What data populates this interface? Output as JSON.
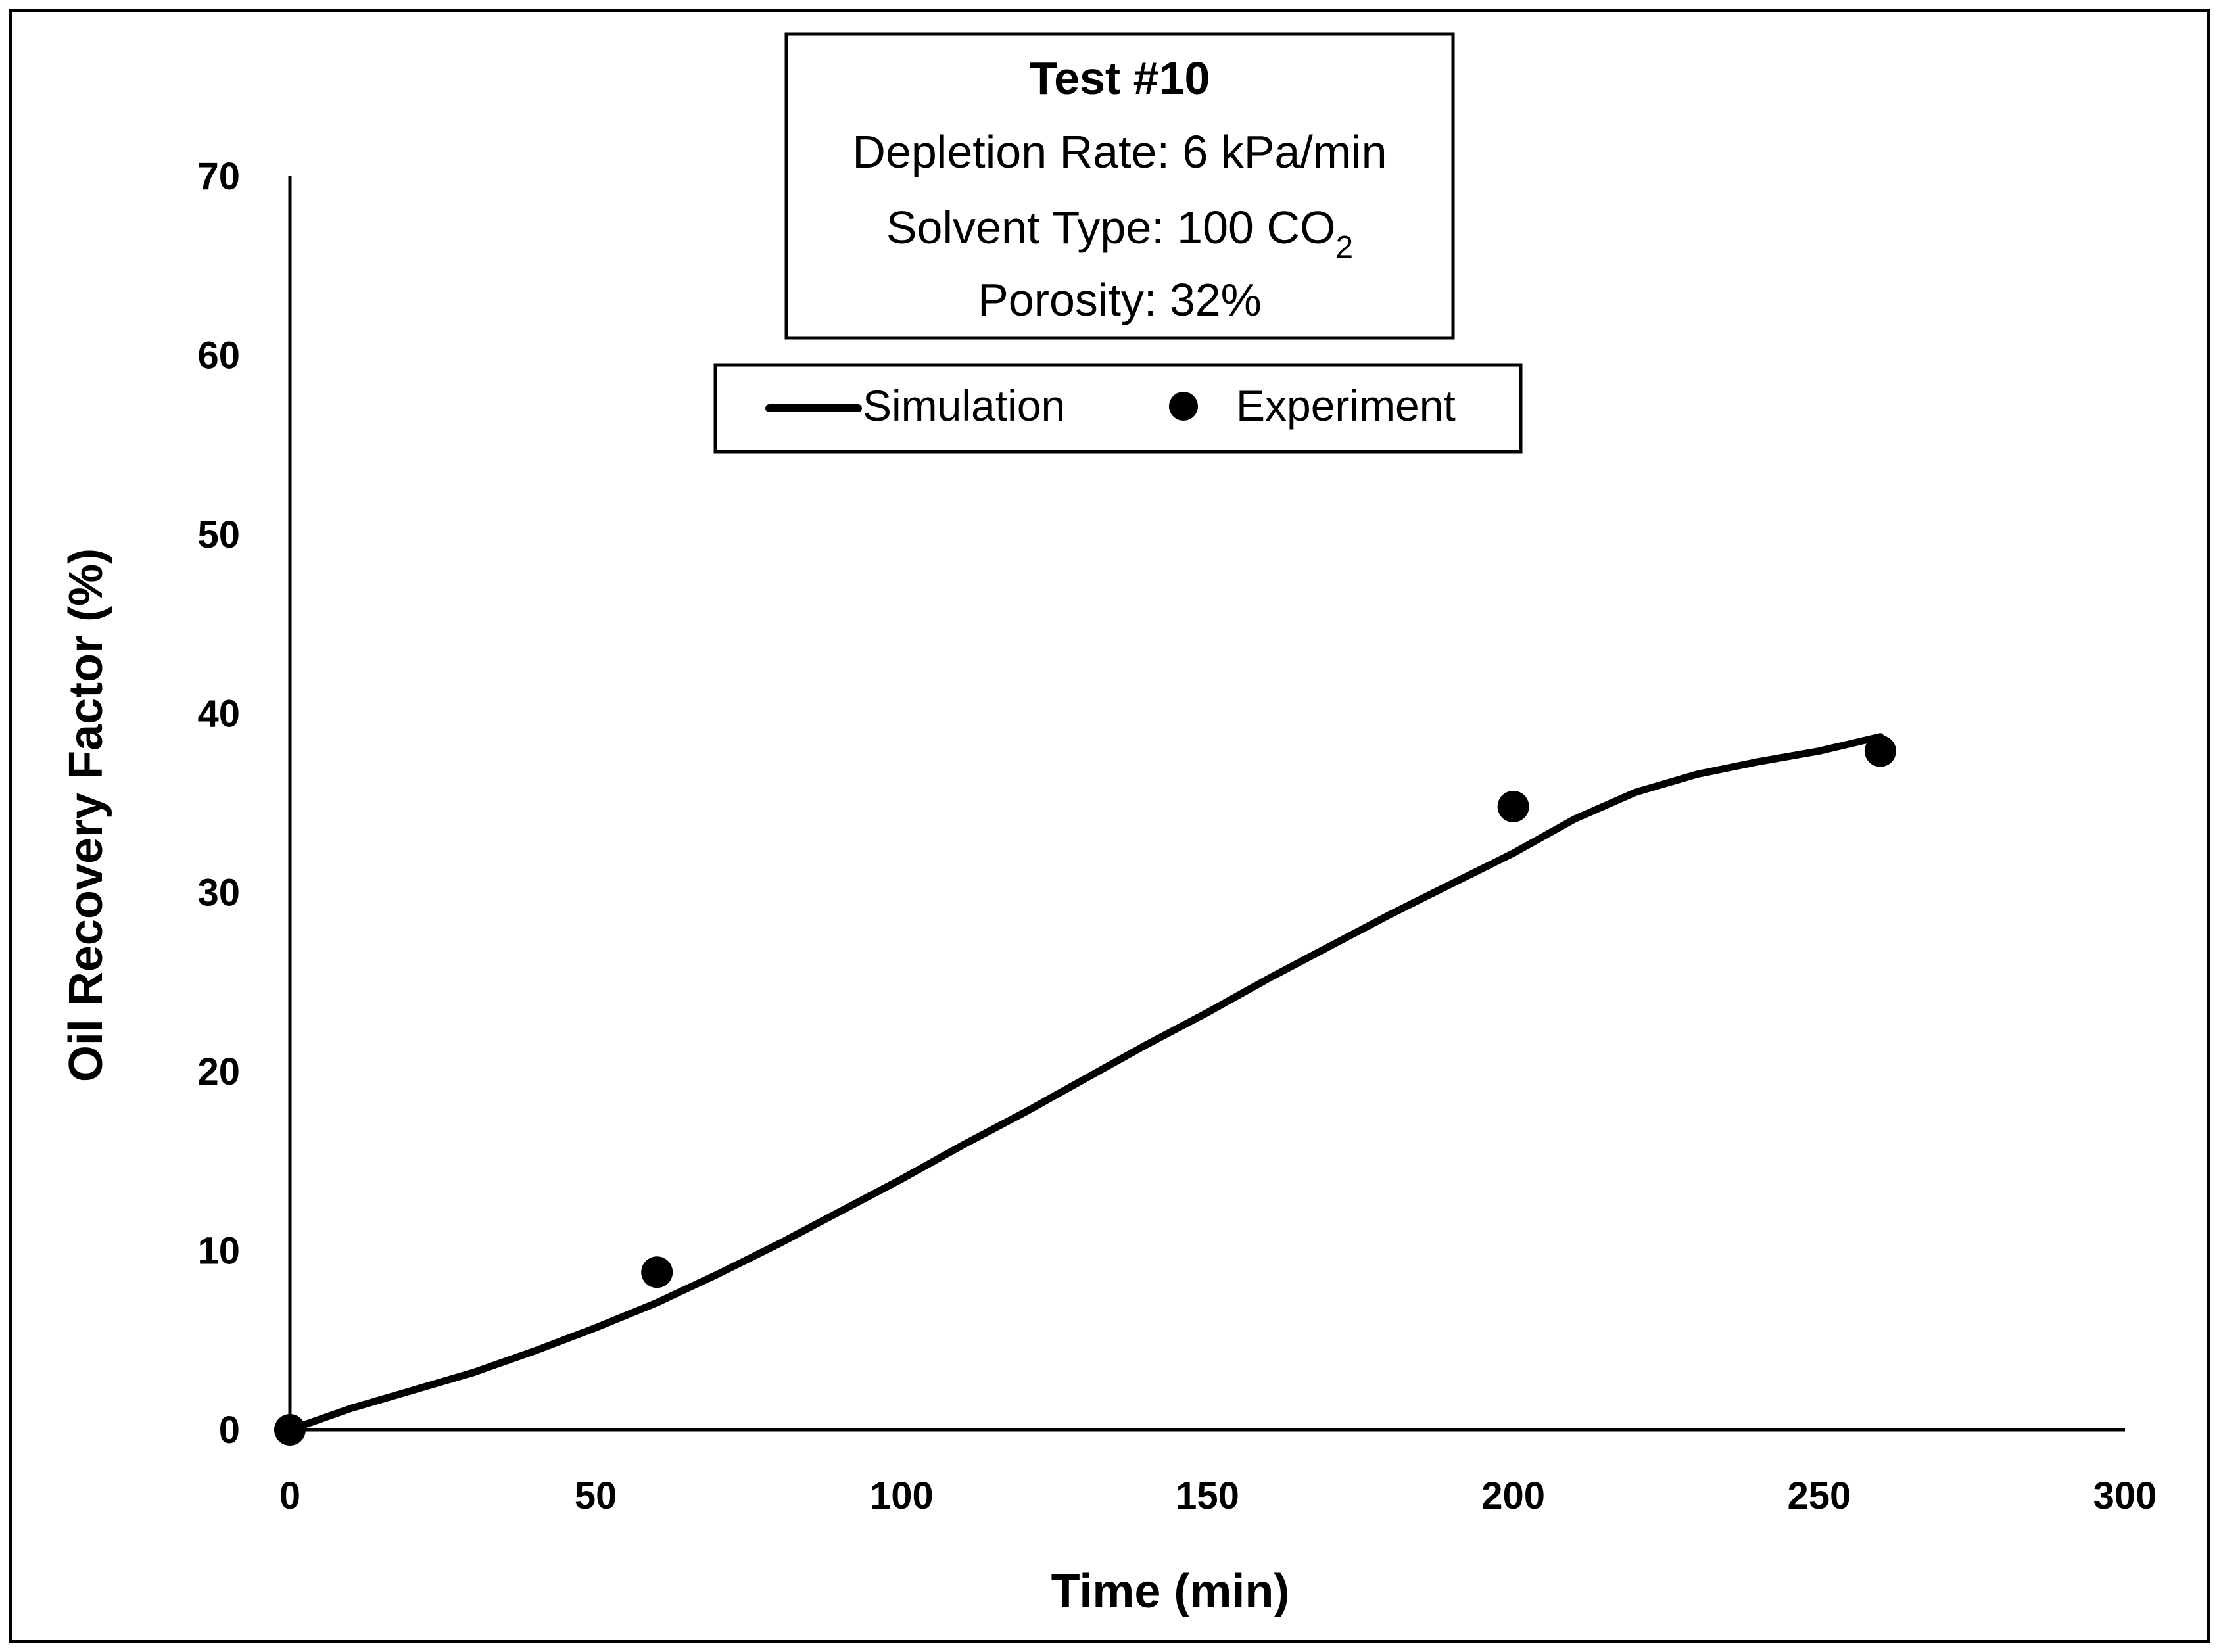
{
  "chart_data": {
    "type": "line",
    "xlabel": "Time (min)",
    "ylabel": "Oil Recovery Factor (%)",
    "xlim": [
      0,
      300
    ],
    "ylim": [
      0,
      70
    ],
    "xticks": [
      "0",
      "50",
      "100",
      "150",
      "200",
      "250",
      "300"
    ],
    "yticks": [
      "0",
      "10",
      "20",
      "30",
      "40",
      "50",
      "60",
      "70"
    ],
    "grid": false,
    "annotation": {
      "title": "Test #10",
      "line1": "Depletion Rate: 6 kPa/min",
      "line2_prefix": "Solvent Type: 100 CO",
      "line2_subscript": "2",
      "line3": "Porosity: 32%"
    },
    "legend": {
      "placement": "top-center",
      "simulation_label": "Simulation",
      "experiment_label": "Experiment"
    },
    "series": [
      {
        "name": "Simulation",
        "kind": "line",
        "color": "#000000",
        "x": [
          0,
          10,
          20,
          30,
          40,
          50,
          60,
          70,
          80,
          90,
          100,
          110,
          120,
          130,
          140,
          150,
          160,
          170,
          180,
          190,
          200,
          210,
          220,
          230,
          240,
          250,
          260
        ],
        "y": [
          0,
          1.2,
          2.2,
          3.2,
          4.4,
          5.7,
          7.1,
          8.7,
          10.4,
          12.2,
          14.0,
          15.9,
          17.7,
          19.6,
          21.5,
          23.3,
          25.2,
          27.0,
          28.8,
          30.5,
          32.2,
          34.1,
          35.6,
          36.6,
          37.3,
          37.9,
          38.7
        ]
      },
      {
        "name": "Experiment",
        "kind": "scatter",
        "color": "#000000",
        "x": [
          0,
          60,
          200,
          260
        ],
        "y": [
          0,
          8.8,
          34.8,
          37.9
        ]
      }
    ]
  }
}
